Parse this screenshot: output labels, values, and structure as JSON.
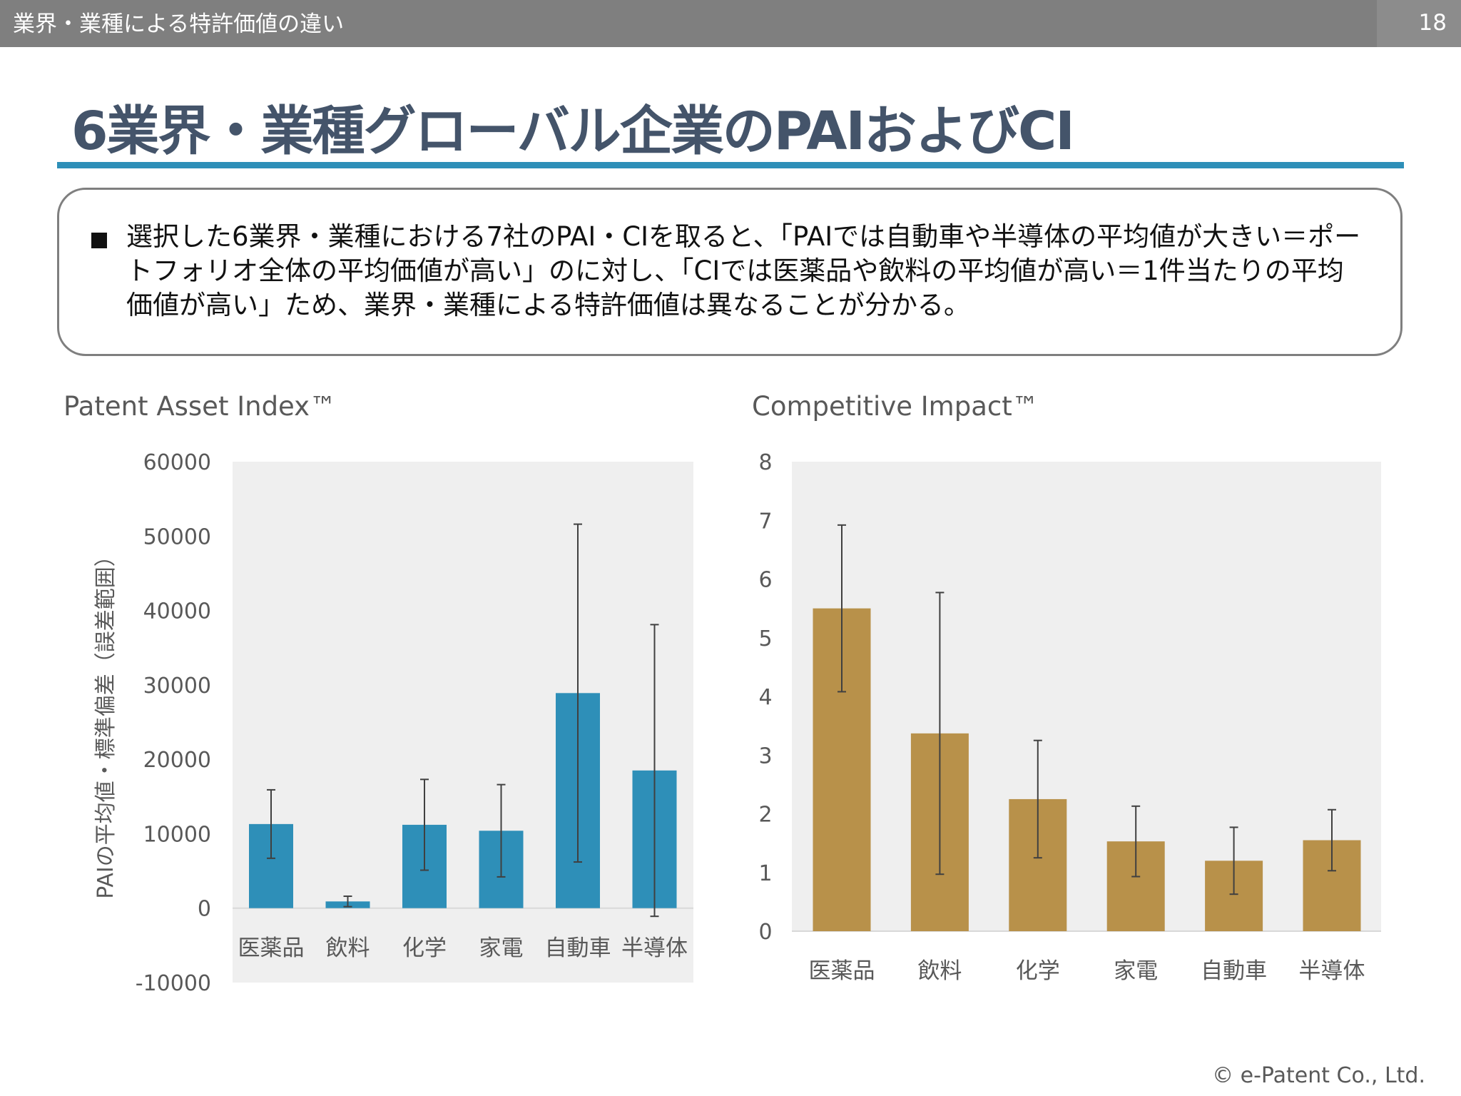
{
  "header": {
    "section_title": "業界・業種による特許価値の違い",
    "page_number": "18"
  },
  "slide": {
    "title": "6業界・業種グローバル企業のPAIおよびCI",
    "summary": "選択した6業界・業種における7社のPAI・CIを取ると、「PAIでは自動車や半導体の平均値が大きい＝ポートフォリオ全体の平均価値が高い」のに対し、「CIでは医薬品や飲料の平均値が高い＝1件当たりの平均価値が高い」ため、業界・業種による特許価値は異なることが分かる。"
  },
  "footer": {
    "copyright": "© e-Patent Co., Ltd."
  },
  "colors": {
    "pai_bar": "#2e8fb8",
    "ci_bar": "#b8914a",
    "title": "#44546a",
    "rule": "#2e8fb8"
  },
  "chart_data": [
    {
      "type": "bar",
      "title": "Patent Asset Index™",
      "ylabel": "PAIの平均値・標準偏差（誤差範囲）",
      "xlabel": "",
      "categories": [
        "医薬品",
        "飲料",
        "化学",
        "家電",
        "自動車",
        "半導体"
      ],
      "values": [
        11300,
        900,
        11200,
        10400,
        28900,
        18500
      ],
      "error": [
        4600,
        700,
        6100,
        6200,
        22700,
        19600
      ],
      "ylim": [
        -10000,
        60000
      ],
      "yticks": [
        "60000",
        "50000",
        "40000",
        "30000",
        "20000",
        "10000",
        "0",
        "-10000"
      ],
      "grid": false
    },
    {
      "type": "bar",
      "title": "Competitive Impact™",
      "ylabel": "",
      "xlabel": "",
      "categories": [
        "医薬品",
        "飲料",
        "化学",
        "家電",
        "自動車",
        "半導体"
      ],
      "values": [
        5.5,
        3.37,
        2.25,
        1.53,
        1.2,
        1.55
      ],
      "error": [
        1.42,
        2.4,
        1.0,
        0.6,
        0.57,
        0.52
      ],
      "ylim": [
        0,
        8
      ],
      "yticks": [
        "8",
        "7",
        "6",
        "5",
        "4",
        "3",
        "2",
        "1",
        "0"
      ],
      "grid": false
    }
  ]
}
